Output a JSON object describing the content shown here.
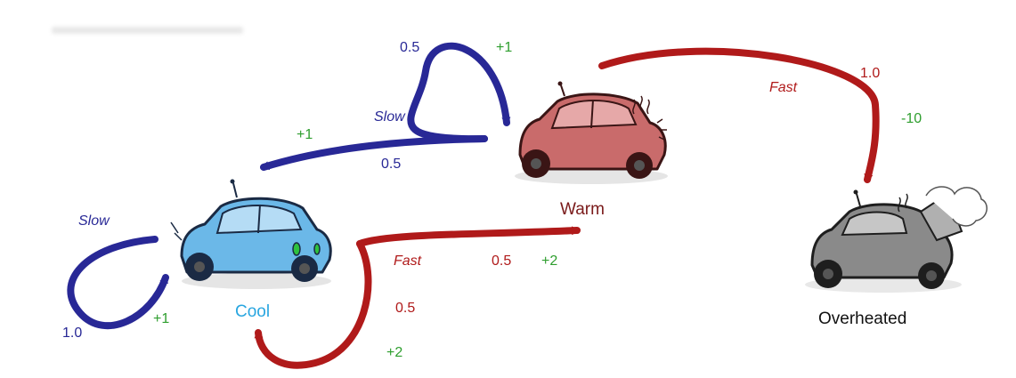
{
  "colors": {
    "slow": "#282896",
    "fast": "#b01a1a",
    "reward": "#2e9e2e",
    "cool_label": "#29a6e0",
    "warm_label": "#7a1a1a",
    "overheated_label": "#111111",
    "cool_car": "#6bb8e8",
    "warm_car": "#c96b6b",
    "overheated_car": "#8a8a8a"
  },
  "states": {
    "cool": "Cool",
    "warm": "Warm",
    "overheated": "Overheated"
  },
  "transitions": {
    "cool_slow": {
      "action": "Slow",
      "prob": "1.0",
      "reward": "+1"
    },
    "cool_fast_warm": {
      "action": "Fast",
      "prob": "0.5",
      "reward": "+2"
    },
    "cool_fast_cool": {
      "prob": "0.5",
      "reward": "+2"
    },
    "warm_slow_warm": {
      "action": "Slow",
      "prob": "0.5",
      "reward": "+1"
    },
    "warm_slow_cool": {
      "prob": "0.5",
      "reward": "+1"
    },
    "warm_fast_overheated": {
      "action": "Fast",
      "prob": "1.0",
      "reward": "-10"
    }
  }
}
